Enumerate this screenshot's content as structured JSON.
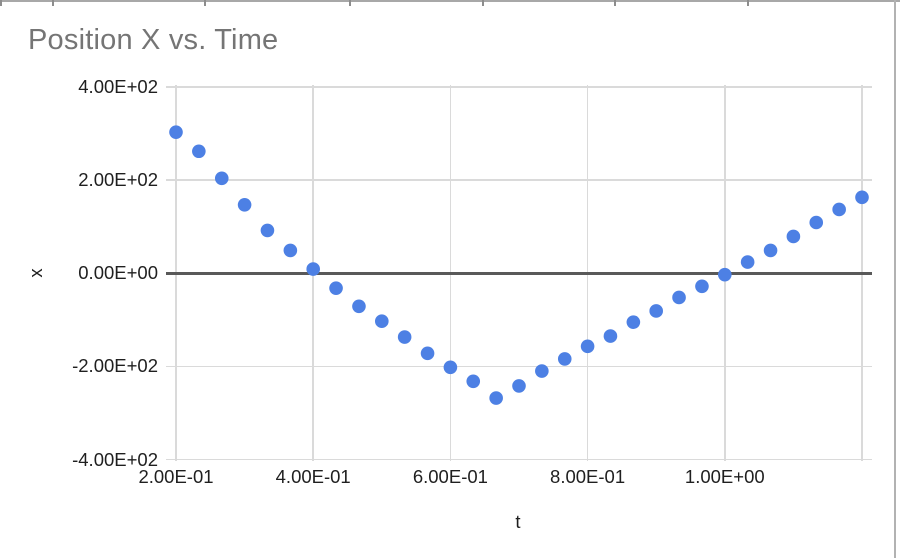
{
  "window": {
    "top_border_ticks_x": [
      0,
      52,
      204,
      349,
      482,
      614,
      747
    ],
    "top_border_color": "#a8a8a8",
    "right_border_color": "#b2b2b2"
  },
  "chart": {
    "title": "Position X vs. Time",
    "title_color": "#757575",
    "x_axis_title": "t",
    "y_axis_title": "x",
    "point_color": "#4d80e4",
    "grid_color": "#dadada",
    "zero_line_color": "#595959",
    "label_color": "#1f1f1f",
    "background": "#ffffff"
  },
  "chart_data": {
    "type": "scatter",
    "title": "Position X vs. Time",
    "xlabel": "t",
    "ylabel": "x",
    "xlim": [
      0.2,
      1.2
    ],
    "ylim": [
      -400,
      400
    ],
    "grid": true,
    "legend": "none",
    "x_ticks": [
      {
        "value": 0.2,
        "label": "2.00E-01"
      },
      {
        "value": 0.4,
        "label": "4.00E-01"
      },
      {
        "value": 0.6,
        "label": "6.00E-01"
      },
      {
        "value": 0.8,
        "label": "8.00E-01"
      },
      {
        "value": 1.0,
        "label": "1.00E+00"
      },
      {
        "value": 1.2,
        "label": ""
      }
    ],
    "y_ticks": [
      {
        "value": 400,
        "label": "4.00E+02"
      },
      {
        "value": 200,
        "label": "2.00E+02"
      },
      {
        "value": 0,
        "label": "0.00E+00"
      },
      {
        "value": -200,
        "label": "-2.00E+02"
      },
      {
        "value": -400,
        "label": "-4.00E+02"
      }
    ],
    "series": [
      {
        "name": "x",
        "t": [
          0.2,
          0.2333,
          0.2667,
          0.3,
          0.3333,
          0.3667,
          0.4,
          0.4333,
          0.4667,
          0.5,
          0.5333,
          0.5667,
          0.6,
          0.6333,
          0.6667,
          0.7,
          0.7333,
          0.7667,
          0.8,
          0.8333,
          0.8667,
          0.9,
          0.9333,
          0.9667,
          1.0,
          1.0333,
          1.0667,
          1.1,
          1.1333,
          1.1667,
          1.2
        ],
        "x": [
          303,
          262,
          204,
          147,
          92,
          49,
          9,
          -32,
          -71,
          -103,
          -137,
          -172,
          -202,
          -232,
          -268,
          -242,
          -210,
          -184,
          -157,
          -135,
          -105,
          -81,
          -52,
          -28,
          -3,
          24,
          49,
          79,
          109,
          137,
          163
        ]
      }
    ]
  }
}
